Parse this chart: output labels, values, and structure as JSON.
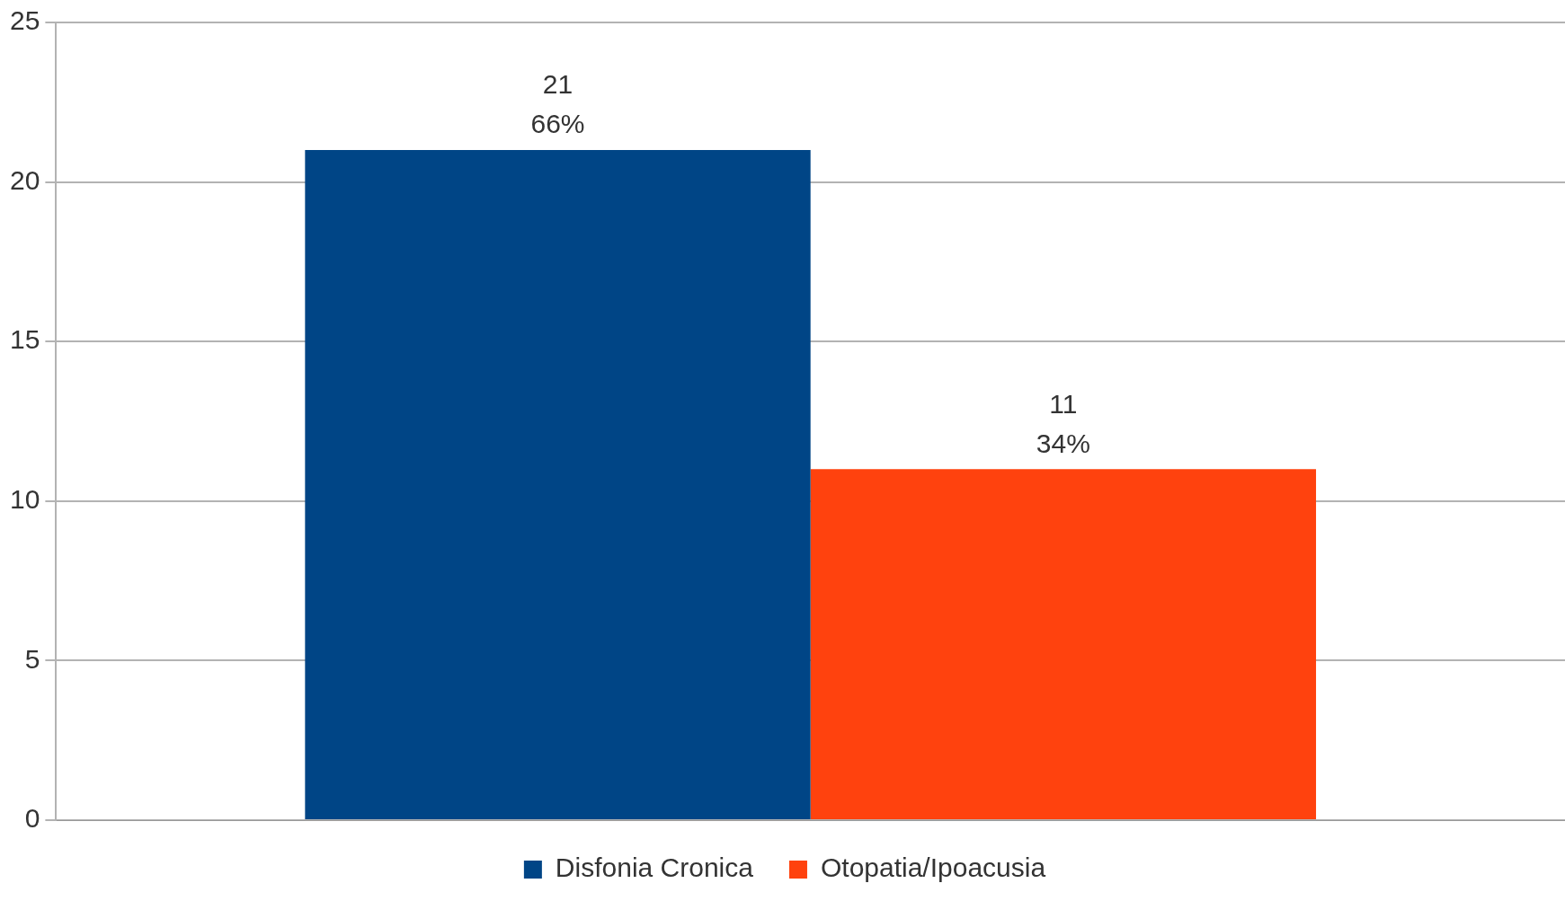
{
  "chart_data": {
    "type": "bar",
    "categories": [
      null
    ],
    "series": [
      {
        "name": "Disfonia Cronica",
        "color": "#004586",
        "values": [
          21
        ],
        "value_labels": [
          "21\n66%"
        ]
      },
      {
        "name": "Otopatia/Ipoacusia",
        "color": "#ff420e",
        "values": [
          11
        ],
        "value_labels": [
          "11\n34%"
        ]
      }
    ],
    "ylim": [
      0,
      25
    ],
    "yticks": [
      0,
      5,
      10,
      15,
      20,
      25
    ],
    "grid": "y",
    "legend": "bottom",
    "tick_labels": "y"
  }
}
